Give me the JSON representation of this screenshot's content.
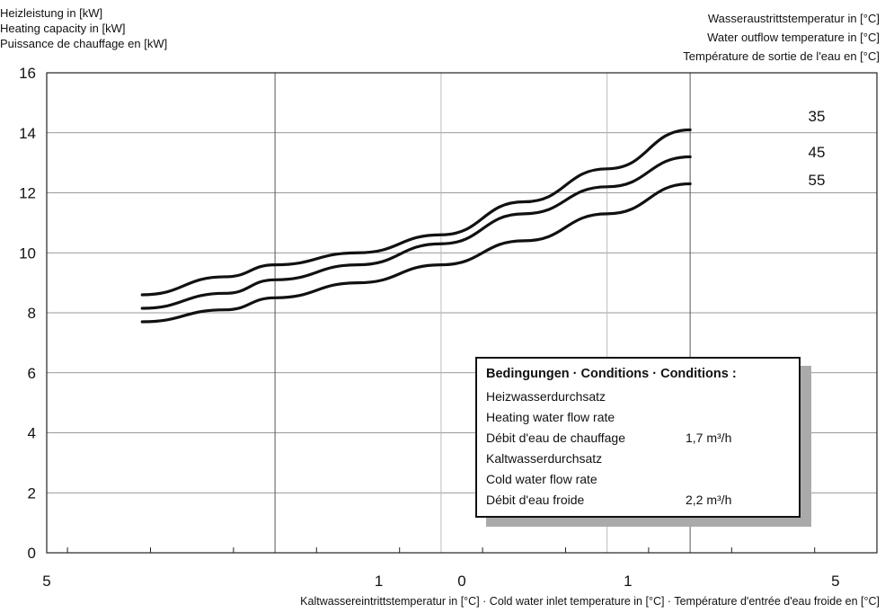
{
  "left_axis_title": [
    "Heizleistung in [kW]",
    "Heating capacity in [kW]",
    "Puissance de chauffage en [kW]"
  ],
  "right_axis_title": [
    "Wasseraustrittstemperatur in [°C]",
    "Water outflow temperature in [°C]",
    "Température de sortie de l'eau en [°C]"
  ],
  "x_axis_title": "Kaltwassereintrittstemperatur in [°C] · Cold water inlet temperature in [°C] · Température d'entrée d'eau froide en [°C]",
  "conditions": {
    "title": "Bedingungen · Conditions · Conditions :",
    "heating_flow": {
      "labels": [
        "Heizwasserdurchsatz",
        "Heating water flow rate",
        "Débit d'eau de chauffage"
      ],
      "value": "1,7 m³/h"
    },
    "cold_flow": {
      "labels": [
        "Kaltwasserdurchsatz",
        "Cold water flow rate",
        "Débit d'eau froide"
      ],
      "value": "2,2 m³/h"
    }
  },
  "chart_data": {
    "type": "line",
    "x_tick_labels": [
      "5",
      "1",
      "0",
      "1",
      "5"
    ],
    "y_ticks": [
      0,
      2,
      4,
      6,
      8,
      10,
      12,
      14,
      16
    ],
    "ylim": [
      0,
      16
    ],
    "grid": true,
    "series": [
      {
        "name": "35",
        "x": [
          -4.6,
          -3.6,
          -3,
          -2,
          -1,
          0,
          1,
          2
        ],
        "y": [
          8.6,
          9.2,
          9.6,
          10.0,
          10.6,
          11.7,
          12.8,
          14.1
        ]
      },
      {
        "name": "45",
        "x": [
          -4.6,
          -3.6,
          -3,
          -2,
          -1,
          0,
          1,
          2
        ],
        "y": [
          8.15,
          8.65,
          9.1,
          9.6,
          10.3,
          11.3,
          12.2,
          13.2
        ]
      },
      {
        "name": "55",
        "x": [
          -4.6,
          -3.6,
          -3,
          -2,
          -1,
          0,
          1,
          2
        ],
        "y": [
          7.7,
          8.1,
          8.5,
          9.0,
          9.6,
          10.4,
          11.3,
          12.3
        ]
      }
    ]
  }
}
